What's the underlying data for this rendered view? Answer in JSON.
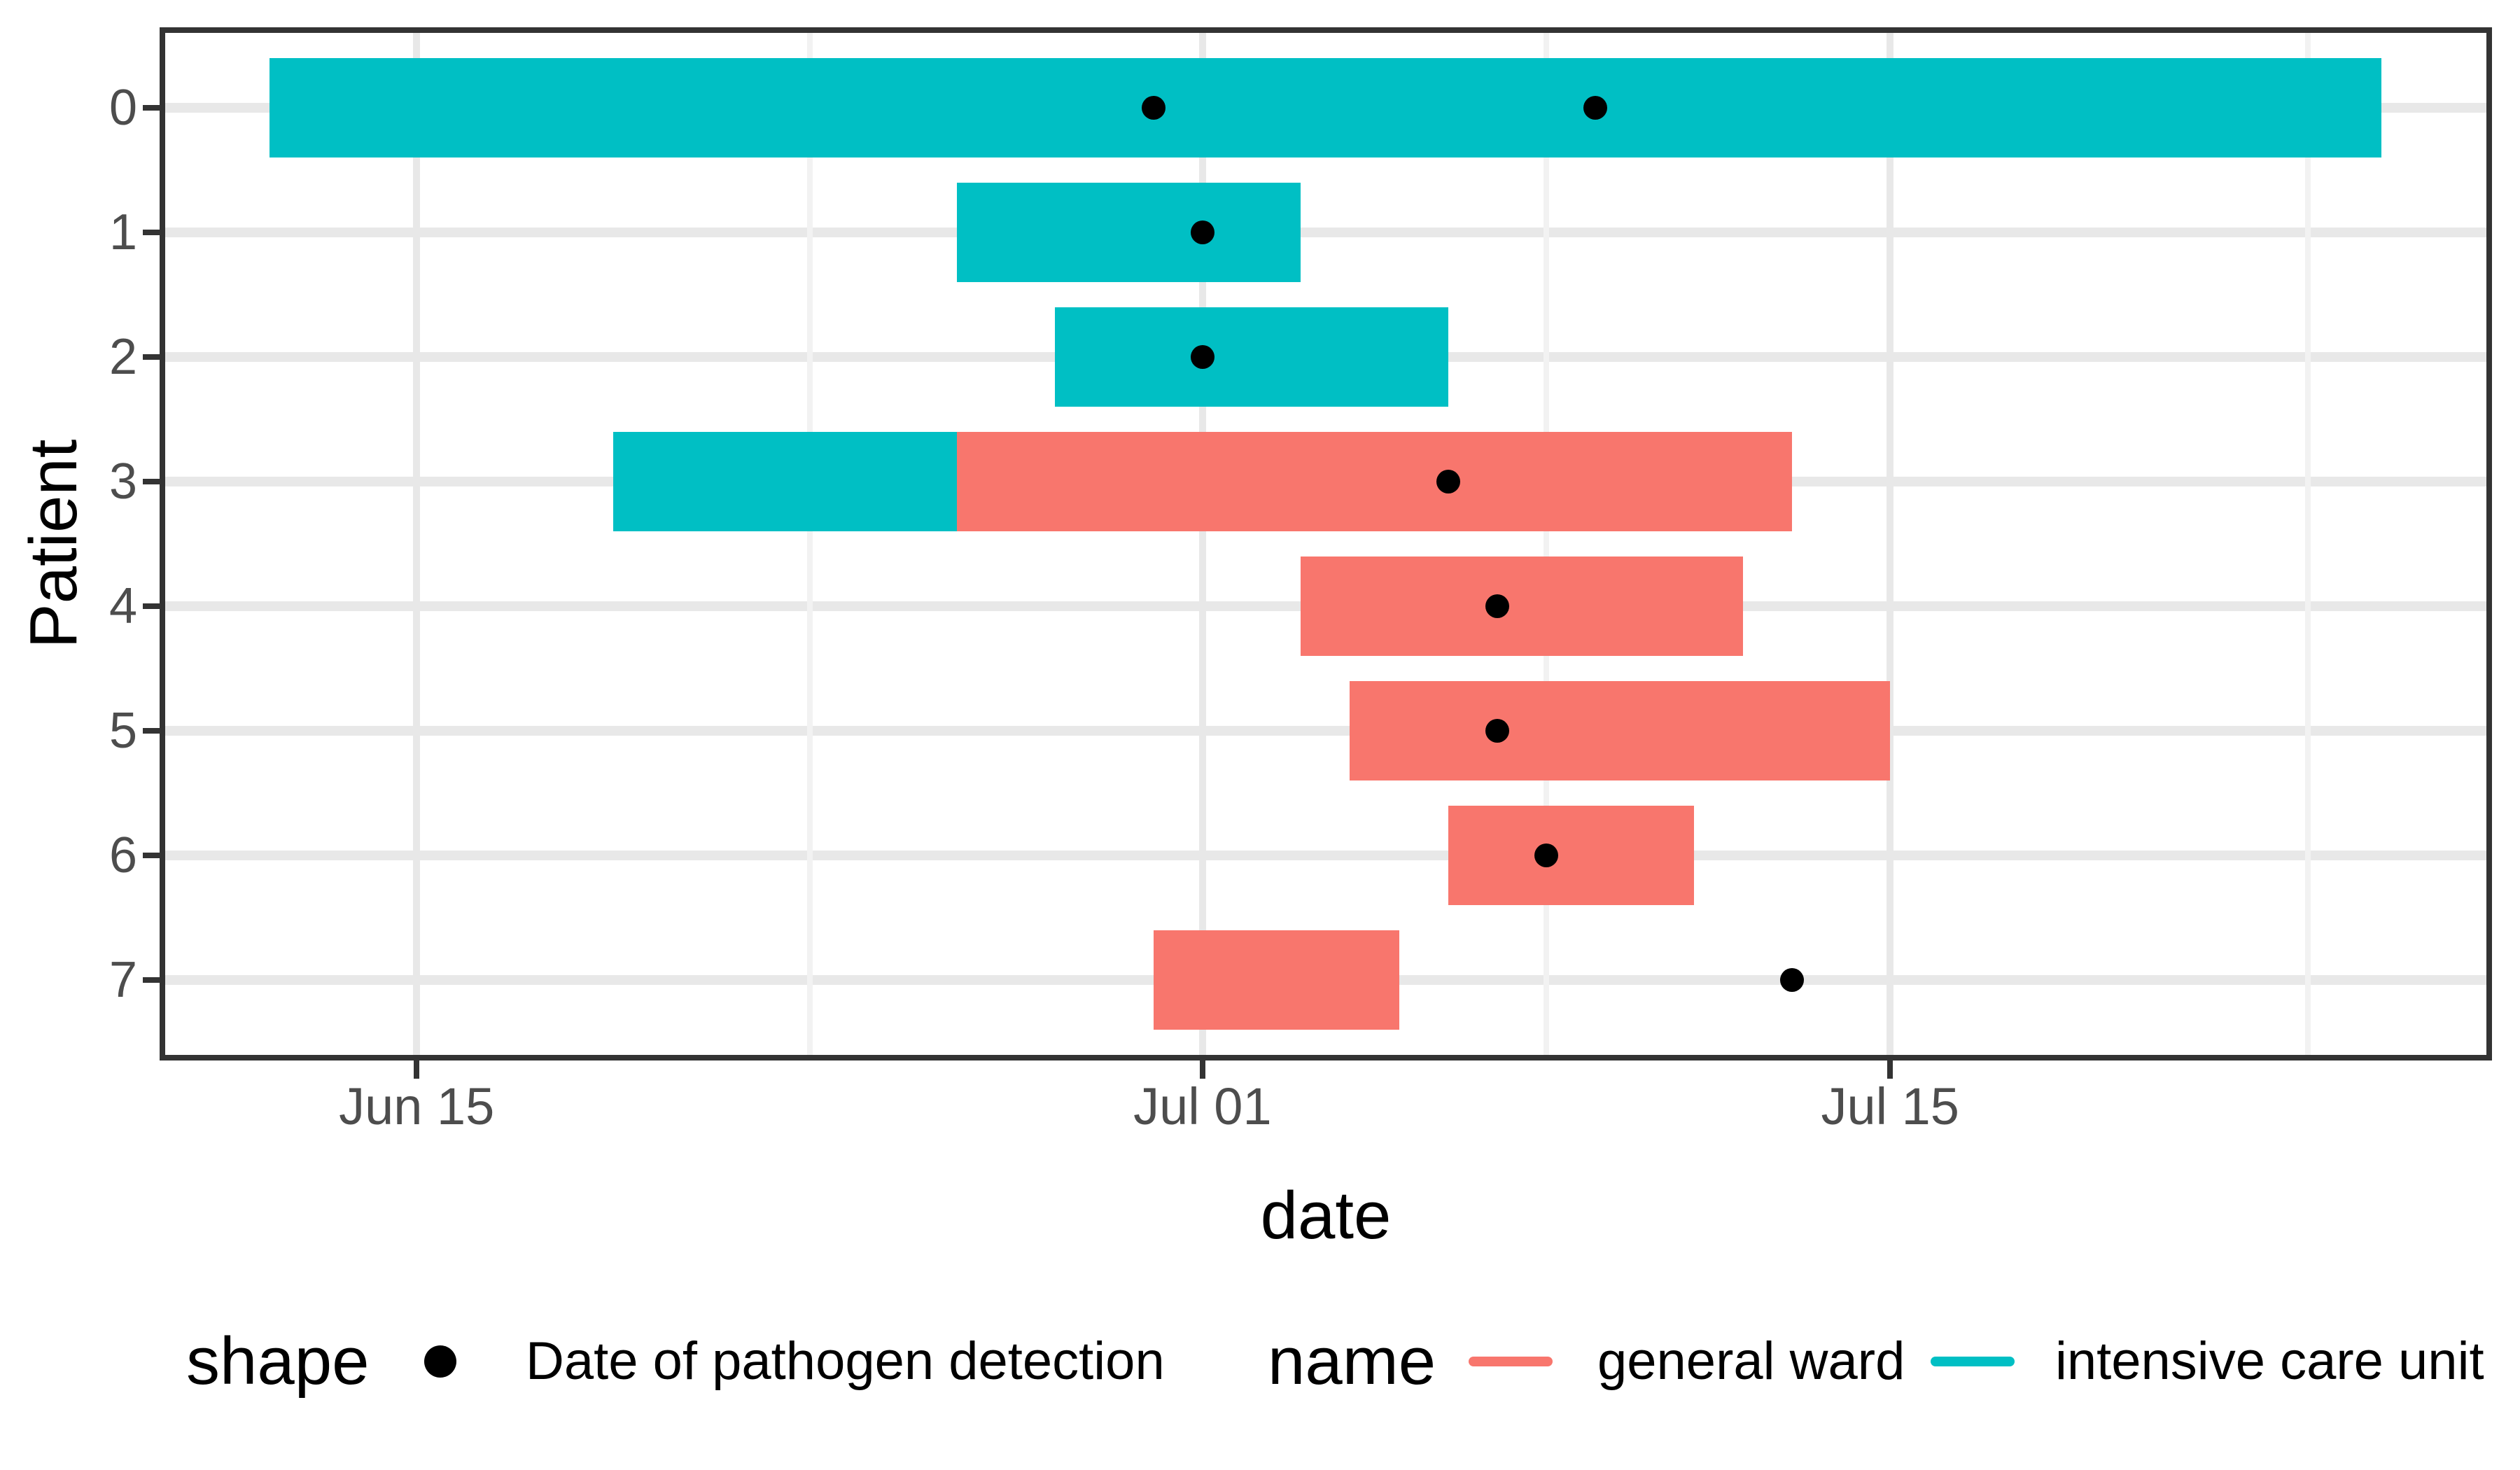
{
  "figure": {
    "background": "#FFFFFF",
    "panel_border_color": "#333333",
    "grid_major_color": "#E8E8E8",
    "grid_minor_color": "#F2F2F2",
    "tick_color": "#333333",
    "tick_label_color": "#4D4D4D",
    "title_color": "#000000",
    "detection_dot_color": "#000000"
  },
  "axes": {
    "y_title": "Patient",
    "x_title": "date",
    "y_tick_labels": [
      "0",
      "1",
      "2",
      "3",
      "4",
      "5",
      "6",
      "7"
    ],
    "x_ticks": [
      {
        "label": "Jun 15",
        "day": 15
      },
      {
        "label": "Jul 01",
        "day": 31
      },
      {
        "label": "Jul 15",
        "day": 45
      }
    ],
    "x_minor_grid_days": [
      23,
      38,
      53.5
    ]
  },
  "chart_data": {
    "type": "bar",
    "subtype": "horizontal-gantt-timeline",
    "title": "",
    "xlabel": "date",
    "ylabel": "Patient",
    "day_index_note": "day 1 = Jun 01, day 31 = Jul 01",
    "xlim_days": [
      9.88,
      57.14
    ],
    "grid": true,
    "legend_position": "bottom",
    "ward_colors": {
      "general ward": "#F8766D",
      "intensive care unit": "#00BFC4"
    },
    "categories": [
      "0",
      "1",
      "2",
      "3",
      "4",
      "5",
      "6",
      "7"
    ],
    "patients": [
      {
        "label": "0",
        "segments": [
          {
            "ward": "intensive care unit",
            "start": "Jun 12",
            "end": "Jul 25",
            "start_day": 12,
            "end_day": 55
          }
        ],
        "detections": [
          {
            "date": "Jun 30",
            "day": 30
          },
          {
            "date": "Jul 09",
            "day": 39
          }
        ]
      },
      {
        "label": "1",
        "segments": [
          {
            "ward": "intensive care unit",
            "start": "Jun 26",
            "end": "Jul 03",
            "start_day": 26,
            "end_day": 33
          }
        ],
        "detections": [
          {
            "date": "Jul 01",
            "day": 31
          }
        ]
      },
      {
        "label": "2",
        "segments": [
          {
            "ward": "intensive care unit",
            "start": "Jun 28",
            "end": "Jul 06",
            "start_day": 28,
            "end_day": 36
          }
        ],
        "detections": [
          {
            "date": "Jul 01",
            "day": 31
          }
        ]
      },
      {
        "label": "3",
        "segments": [
          {
            "ward": "intensive care unit",
            "start": "Jun 19",
            "end": "Jun 26",
            "start_day": 19,
            "end_day": 26
          },
          {
            "ward": "general ward",
            "start": "Jun 26",
            "end": "Jul 13",
            "start_day": 26,
            "end_day": 43
          }
        ],
        "detections": [
          {
            "date": "Jul 06",
            "day": 36
          }
        ]
      },
      {
        "label": "4",
        "segments": [
          {
            "ward": "general ward",
            "start": "Jul 03",
            "end": "Jul 12",
            "start_day": 33,
            "end_day": 42
          }
        ],
        "detections": [
          {
            "date": "Jul 07",
            "day": 37
          }
        ]
      },
      {
        "label": "5",
        "segments": [
          {
            "ward": "general ward",
            "start": "Jul 04",
            "end": "Jul 15",
            "start_day": 34,
            "end_day": 45
          }
        ],
        "detections": [
          {
            "date": "Jul 07",
            "day": 37
          }
        ]
      },
      {
        "label": "6",
        "segments": [
          {
            "ward": "general ward",
            "start": "Jul 06",
            "end": "Jul 11",
            "start_day": 36,
            "end_day": 41
          }
        ],
        "detections": [
          {
            "date": "Jul 08",
            "day": 38
          }
        ]
      },
      {
        "label": "7",
        "segments": [
          {
            "ward": "general ward",
            "start": "Jun 30",
            "end": "Jul 05",
            "start_day": 30,
            "end_day": 35
          }
        ],
        "detections": [
          {
            "date": "Jul 13",
            "day": 43
          }
        ]
      }
    ]
  },
  "legend": {
    "shape": {
      "title": "shape",
      "item_label": "Date of pathogen detection",
      "key_color": "#000000"
    },
    "name": {
      "title": "name",
      "items": [
        {
          "label": "general ward",
          "color": "#F8766D"
        },
        {
          "label": "intensive care unit",
          "color": "#00BFC4"
        }
      ]
    }
  }
}
